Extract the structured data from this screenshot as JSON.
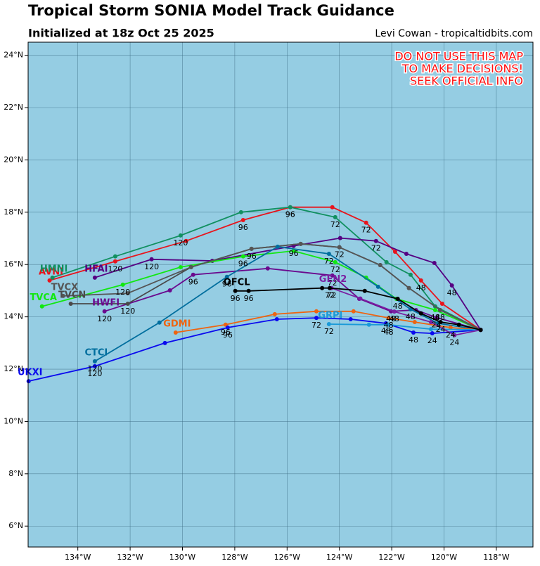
{
  "chart_data": {
    "type": "track",
    "title": "Tropical Storm SONIA Model Track Guidance",
    "subtitle": "Initialized at 18z Oct 25 2025",
    "credit": "Levi Cowan - tropicaltidbits.com",
    "warning": [
      "DO NOT USE THIS MAP",
      "TO MAKE DECISIONS!",
      "SEEK OFFICIAL INFO"
    ],
    "background": "#95cde3",
    "grid": true,
    "xlim": [
      -135.9,
      -116.6
    ],
    "ylim": [
      5.2,
      24.5
    ],
    "xticks": [
      {
        "value": -134,
        "label": "134°W"
      },
      {
        "value": -132,
        "label": "132°W"
      },
      {
        "value": -130,
        "label": "130°W"
      },
      {
        "value": -128,
        "label": "128°W"
      },
      {
        "value": -126,
        "label": "126°W"
      },
      {
        "value": -124,
        "label": "124°W"
      },
      {
        "value": -122,
        "label": "122°W"
      },
      {
        "value": -120,
        "label": "120°W"
      },
      {
        "value": -118,
        "label": "118°W"
      }
    ],
    "yticks": [
      {
        "value": 6,
        "label": "6°N"
      },
      {
        "value": 8,
        "label": "8°N"
      },
      {
        "value": 10,
        "label": "10°N"
      },
      {
        "value": 12,
        "label": "12°N"
      },
      {
        "value": 14,
        "label": "14°N"
      },
      {
        "value": 16,
        "label": "16°N"
      },
      {
        "value": 18,
        "label": "18°N"
      },
      {
        "value": 20,
        "label": "20°N"
      },
      {
        "value": 22,
        "label": "22°N"
      },
      {
        "value": 24,
        "label": "24°N"
      }
    ],
    "series": [
      {
        "name": "AVNI",
        "color": "#e8141c",
        "x": [
          -118.6,
          -120.07,
          -120.88,
          -121.87,
          -122.98,
          -124.27,
          -125.88,
          -127.68,
          -129.86,
          -132.57,
          -135.08
        ],
        "y": [
          13.5,
          14.5,
          15.39,
          16.49,
          17.6,
          18.19,
          18.19,
          17.7,
          16.9,
          16.12,
          15.39
        ],
        "point_labels": [
          null,
          null,
          48,
          null,
          72,
          null,
          96,
          96,
          null,
          120,
          null
        ]
      },
      {
        "name": "HMNI",
        "color": "#119060",
        "x": [
          -118.6,
          -120.34,
          -121.28,
          -122.2,
          -124.16,
          -125.88,
          -127.76,
          -130.07,
          -132.57,
          -134.97
        ],
        "y": [
          13.5,
          14.4,
          15.61,
          16.09,
          17.81,
          18.19,
          18.0,
          17.11,
          16.31,
          15.5
        ],
        "point_labels": [
          null,
          null,
          null,
          null,
          72,
          96,
          null,
          120,
          null,
          null
        ]
      },
      {
        "name": "HFAI",
        "color": "#550082",
        "x": [
          -118.6,
          -119.7,
          -120.37,
          -121.44,
          -122.6,
          -123.97,
          -125.75,
          -128.86,
          -131.18,
          -133.35
        ],
        "y": [
          13.5,
          15.2,
          16.06,
          16.41,
          16.9,
          17.01,
          16.71,
          16.14,
          16.2,
          15.5
        ],
        "point_labels": [
          null,
          48,
          null,
          null,
          72,
          null,
          96,
          null,
          120,
          null
        ]
      },
      {
        "name": "HWFI",
        "color": "#6a0a8e",
        "x": [
          -118.6,
          -120.29,
          -121.07,
          -122.03,
          -123.24,
          -124.27,
          -126.74,
          -129.59,
          -130.48,
          -132.98
        ],
        "y": [
          13.5,
          13.97,
          14.26,
          14.21,
          14.69,
          15.58,
          15.85,
          15.61,
          15.01,
          14.21
        ],
        "point_labels": [
          null,
          24,
          null,
          48,
          null,
          72,
          null,
          96,
          null,
          120
        ]
      },
      {
        "name": "TVCA",
        "color": "#10e810",
        "x": [
          -118.6,
          -120.34,
          -121.82,
          -122.98,
          -124.16,
          -125.75,
          -127.68,
          -130.07,
          -132.28,
          -135.37
        ],
        "y": [
          13.5,
          14.26,
          14.69,
          15.5,
          16.09,
          16.52,
          16.31,
          15.9,
          15.23,
          14.4
        ],
        "point_labels": [
          null,
          48,
          null,
          null,
          72,
          null,
          96,
          null,
          120,
          null
        ]
      },
      {
        "name": "TVCN",
        "color": "#4a4a4a",
        "x": [
          -118.6,
          -120.15,
          -121.34,
          -122.44,
          -124.0,
          -125.48,
          -127.36,
          -129.67,
          -132.09,
          -134.27
        ],
        "y": [
          13.5,
          14.26,
          15.1,
          15.98,
          16.66,
          16.79,
          16.6,
          15.9,
          14.5,
          14.5
        ],
        "point_labels": [
          null,
          48,
          null,
          null,
          72,
          null,
          96,
          null,
          120,
          null
        ]
      },
      {
        "name": "TVCX",
        "color": "#555555",
        "x": [
          -118.6,
          -120.15,
          -121.34,
          -122.44,
          -124.0,
          -125.48,
          -127.36,
          -129.67,
          -132.09,
          -134.56
        ],
        "y": [
          13.5,
          14.26,
          15.1,
          15.98,
          16.66,
          16.79,
          16.6,
          15.9,
          14.9,
          14.8
        ]
      },
      {
        "name": "CTCI",
        "color": "#006e9e",
        "x": [
          -118.6,
          -120.23,
          -121.28,
          -122.52,
          -124.4,
          -126.36,
          -128.3,
          -130.88,
          -133.35
        ],
        "y": [
          13.5,
          13.75,
          14.29,
          15.15,
          16.41,
          16.68,
          15.53,
          13.78,
          12.3
        ],
        "point_labels": [
          null,
          null,
          48,
          null,
          72,
          null,
          96,
          null,
          120
        ]
      },
      {
        "name": "GDMI",
        "color": "#ee6410",
        "x": [
          -118.6,
          -119.75,
          -121.12,
          -122.12,
          -123.46,
          -124.88,
          -126.47,
          -128.35,
          -130.26
        ],
        "y": [
          13.5,
          13.59,
          13.8,
          13.96,
          14.21,
          14.21,
          14.1,
          13.7,
          13.4
        ],
        "point_labels": [
          null,
          24,
          null,
          48,
          null,
          null,
          null,
          96,
          null
        ]
      },
      {
        "name": "UKXI",
        "color": "#0a0aee",
        "x": [
          -118.6,
          -120.45,
          -121.17,
          -122.22,
          -123.57,
          -124.88,
          -126.39,
          -128.27,
          -130.67,
          -133.35,
          -135.88
        ],
        "y": [
          13.5,
          13.37,
          13.4,
          13.75,
          13.91,
          13.96,
          13.91,
          13.59,
          13.0,
          12.11,
          11.54
        ],
        "point_labels": [
          null,
          24,
          48,
          48,
          null,
          72,
          null,
          96,
          null,
          120,
          null
        ]
      },
      {
        "name": "GRPI",
        "color": "#1a9ad8",
        "x": [
          -118.6,
          -120.5,
          -122.12,
          -122.87,
          -124.4
        ],
        "y": [
          13.5,
          13.53,
          13.7,
          13.7,
          13.72
        ],
        "point_labels": [
          null,
          null,
          48,
          null,
          72
        ]
      },
      {
        "name": "GEN2",
        "color": "#7a1fa2",
        "x": [
          -118.6,
          -119.6,
          -120.5,
          -121.9,
          -123.2,
          -124.3
        ],
        "y": [
          13.5,
          13.3,
          13.8,
          14.2,
          14.7,
          15.1
        ],
        "point_labels": [
          null,
          24,
          null,
          48,
          null,
          72
        ]
      },
      {
        "name": "OFCL",
        "color": "#000000",
        "x": [
          -118.6,
          -119.43,
          -120.13,
          -120.88,
          -121.77,
          -123.03,
          -124.37,
          -124.66,
          -127.47,
          -127.98
        ],
        "y": [
          13.5,
          13.7,
          13.8,
          14.13,
          14.69,
          14.99,
          15.1,
          15.1,
          14.99,
          14.99
        ],
        "point_labels": [
          null,
          null,
          24,
          null,
          48,
          null,
          72,
          null,
          96,
          96
        ]
      }
    ]
  }
}
